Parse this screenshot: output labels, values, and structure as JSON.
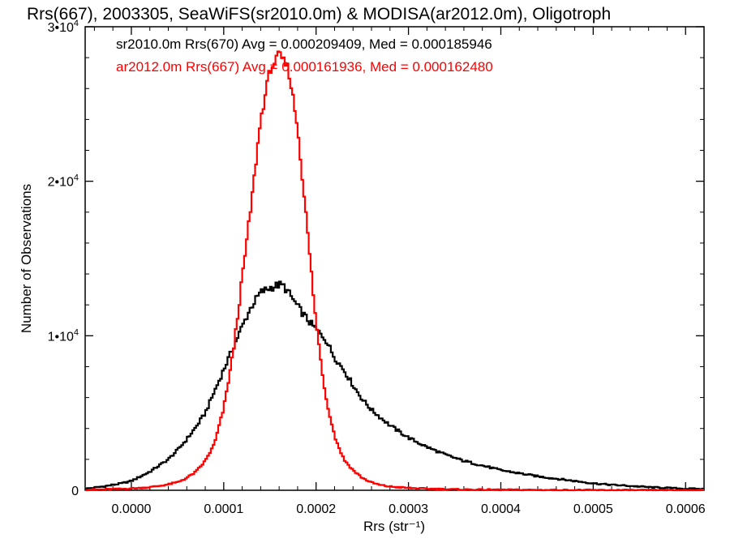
{
  "chart_data": {
    "type": "line",
    "step": true,
    "title": "Rrs(667), 2003305, SeaWiFS(sr2010.0m) & MODISA(ar2012.0m), Oligotroph",
    "xlabel": "Rrs (str⁻¹)",
    "ylabel": "Number of Observations",
    "xlim": [
      -5e-05,
      0.00062
    ],
    "ylim": [
      0,
      30000
    ],
    "xticks": [
      0.0,
      0.0001,
      0.0002,
      0.0003,
      0.0004,
      0.0005,
      0.0006
    ],
    "xtick_labels": [
      "0.0000",
      "0.0001",
      "0.0002",
      "0.0003",
      "0.0004",
      "0.0005",
      "0.0006"
    ],
    "yticks": [
      0,
      10000,
      20000,
      30000
    ],
    "ytick_labels": [
      {
        "base": "0",
        "exp": ""
      },
      {
        "base": "1•10",
        "exp": "4"
      },
      {
        "base": "2•10",
        "exp": "4"
      },
      {
        "base": "3•10",
        "exp": "4"
      }
    ],
    "grid": false,
    "legend_position": "top-left",
    "series": [
      {
        "name": "sr2010.0m Rrs(670) Avg = 0.000209409, Med = 0.000185946",
        "color": "#000000",
        "x": [
          -5e-05,
          -3e-05,
          -1e-05,
          0.0,
          1e-05,
          2e-05,
          3e-05,
          4e-05,
          5e-05,
          6e-05,
          7e-05,
          8e-05,
          9e-05,
          0.0001,
          0.00011,
          0.00012,
          0.00013,
          0.00014,
          0.00015,
          0.00016,
          0.000165,
          0.00017,
          0.00018,
          0.00019,
          0.0002,
          0.00021,
          0.00022,
          0.00023,
          0.00024,
          0.00025,
          0.00026,
          0.00027,
          0.00028,
          0.00029,
          0.0003,
          0.00032,
          0.00034,
          0.00036,
          0.00038,
          0.0004,
          0.00042,
          0.00044,
          0.00046,
          0.00048,
          0.0005,
          0.00052,
          0.00054,
          0.00056,
          0.00058,
          0.0006,
          0.00062
        ],
        "y": [
          100,
          250,
          450,
          600,
          900,
          1200,
          1600,
          2000,
          2600,
          3300,
          4100,
          5000,
          6400,
          7800,
          9200,
          10600,
          11900,
          12800,
          13100,
          13300,
          13200,
          12800,
          11900,
          11100,
          10400,
          9800,
          8600,
          7800,
          6800,
          5900,
          5200,
          4700,
          4200,
          3800,
          3400,
          2800,
          2300,
          1900,
          1600,
          1300,
          1100,
          900,
          750,
          600,
          450,
          350,
          280,
          200,
          150,
          100,
          80
        ]
      },
      {
        "name": "ar2012.0m Rrs(667) Avg = 0.000161936, Med = 0.000162480",
        "color": "#ff0000",
        "x": [
          -5e-05,
          -3e-05,
          -1e-05,
          0.0,
          1e-05,
          2e-05,
          3e-05,
          4e-05,
          5e-05,
          6e-05,
          7e-05,
          8e-05,
          9e-05,
          0.0001,
          0.00011,
          0.00012,
          0.00013,
          0.00014,
          0.00015,
          0.00016,
          0.00017,
          0.00018,
          0.00019,
          0.0002,
          0.00021,
          0.00022,
          0.00023,
          0.00024,
          0.00025,
          0.00026,
          0.00027,
          0.00028,
          0.0003,
          0.00032,
          0.00034,
          0.00036,
          0.00038,
          0.0004,
          0.00045,
          0.0005,
          0.00055,
          0.0006,
          0.00062
        ],
        "y": [
          30,
          60,
          90,
          120,
          150,
          200,
          280,
          380,
          520,
          800,
          1200,
          1900,
          3000,
          5300,
          8800,
          13700,
          18600,
          24000,
          27200,
          28200,
          27300,
          23500,
          17200,
          10800,
          6200,
          3500,
          2000,
          1300,
          800,
          500,
          330,
          240,
          150,
          100,
          70,
          50,
          40,
          30,
          20,
          10,
          5,
          5,
          5
        ]
      }
    ]
  }
}
